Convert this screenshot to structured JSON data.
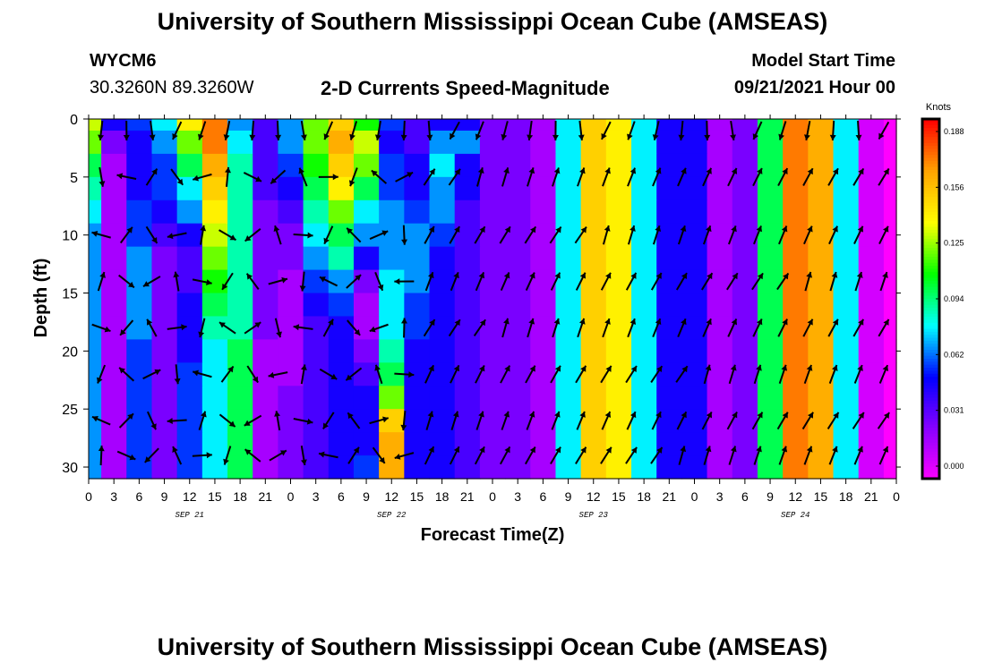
{
  "header": {
    "title": "University of Southern Mississippi Ocean Cube (AMSEAS)",
    "station": "WYCM6",
    "coords": "30.3260N  89.3260W",
    "product": "2-D Currents Speed-Magnitude",
    "model_label": "Model Start Time",
    "model_time": "09/21/2021 Hour 00"
  },
  "footer": {
    "title": "University of Southern Mississippi Ocean Cube (AMSEAS)"
  },
  "chart_data": {
    "type": "heatmap",
    "xlabel": "Forecast Time(Z)",
    "ylabel": "Depth (ft)",
    "x_tick_labels": [
      "0",
      "3",
      "6",
      "9",
      "12",
      "15",
      "18",
      "21",
      "0",
      "3",
      "6",
      "9",
      "12",
      "15",
      "18",
      "21",
      "0",
      "3",
      "6",
      "9",
      "12",
      "15",
      "18",
      "21",
      "0",
      "3",
      "6",
      "9",
      "12",
      "15",
      "18",
      "21",
      "0"
    ],
    "date_labels": [
      "SEP 21",
      "SEP 22",
      "SEP 23",
      "SEP 24"
    ],
    "xlim_hours": [
      0,
      96
    ],
    "ylim_ft": [
      0,
      31
    ],
    "y_ticks": [
      0,
      5,
      10,
      15,
      20,
      25,
      30
    ],
    "y_inverted": true,
    "colorbar": {
      "title": "Knots",
      "ticks": [
        "0.188",
        "0.156",
        "0.125",
        "0.094",
        "0.062",
        "0.031",
        "0.000"
      ],
      "range": [
        0.0,
        0.19
      ],
      "colors": [
        "#ff00ff",
        "#8800ff",
        "#0000ff",
        "#00ffff",
        "#00ff00",
        "#ffff00",
        "#ffa500",
        "#ff0000"
      ]
    },
    "depth_rows_ft": [
      0,
      2,
      4,
      6,
      8,
      10,
      12,
      14,
      16,
      18,
      20,
      22,
      24,
      26,
      28,
      30
    ],
    "time_cols_h": [
      0,
      3,
      6,
      9,
      12,
      15,
      18,
      21,
      24,
      27,
      30,
      33,
      36,
      39,
      42,
      45,
      48,
      51,
      54,
      57,
      60,
      63,
      66,
      69,
      72,
      75,
      78,
      81,
      84,
      87,
      90,
      93,
      96
    ],
    "speed_knots": [
      [
        0.13,
        0.05,
        0.06,
        0.08,
        0.14,
        0.17,
        0.07,
        0.04,
        0.07,
        0.12,
        0.15,
        0.11,
        0.06,
        0.04,
        0.05,
        0.05,
        0.03,
        0.03,
        0.02,
        0.08,
        0.15,
        0.14,
        0.08,
        0.05,
        0.05,
        0.02,
        0.03,
        0.1,
        0.17,
        0.16,
        0.08,
        0.01,
        0.0
      ],
      [
        0.12,
        0.03,
        0.05,
        0.07,
        0.12,
        0.17,
        0.08,
        0.04,
        0.07,
        0.12,
        0.16,
        0.13,
        0.05,
        0.04,
        0.07,
        0.07,
        0.03,
        0.03,
        0.02,
        0.08,
        0.15,
        0.14,
        0.08,
        0.05,
        0.05,
        0.02,
        0.03,
        0.1,
        0.17,
        0.16,
        0.08,
        0.01,
        0.0
      ],
      [
        0.1,
        0.02,
        0.05,
        0.06,
        0.1,
        0.16,
        0.09,
        0.04,
        0.06,
        0.11,
        0.15,
        0.12,
        0.06,
        0.05,
        0.08,
        0.05,
        0.03,
        0.03,
        0.02,
        0.08,
        0.15,
        0.14,
        0.08,
        0.05,
        0.05,
        0.02,
        0.03,
        0.1,
        0.17,
        0.16,
        0.08,
        0.01,
        0.0
      ],
      [
        0.09,
        0.02,
        0.05,
        0.06,
        0.08,
        0.15,
        0.09,
        0.04,
        0.05,
        0.1,
        0.14,
        0.1,
        0.06,
        0.05,
        0.07,
        0.05,
        0.03,
        0.03,
        0.02,
        0.08,
        0.15,
        0.14,
        0.08,
        0.05,
        0.05,
        0.02,
        0.03,
        0.1,
        0.17,
        0.16,
        0.08,
        0.01,
        0.0
      ],
      [
        0.08,
        0.02,
        0.06,
        0.05,
        0.07,
        0.14,
        0.09,
        0.03,
        0.04,
        0.09,
        0.12,
        0.08,
        0.07,
        0.06,
        0.07,
        0.04,
        0.03,
        0.03,
        0.02,
        0.08,
        0.15,
        0.14,
        0.08,
        0.05,
        0.05,
        0.02,
        0.03,
        0.1,
        0.17,
        0.16,
        0.08,
        0.01,
        0.0
      ],
      [
        0.07,
        0.02,
        0.06,
        0.04,
        0.05,
        0.13,
        0.09,
        0.03,
        0.03,
        0.08,
        0.1,
        0.07,
        0.07,
        0.07,
        0.06,
        0.04,
        0.03,
        0.03,
        0.02,
        0.08,
        0.15,
        0.14,
        0.08,
        0.05,
        0.05,
        0.02,
        0.03,
        0.1,
        0.17,
        0.16,
        0.08,
        0.01,
        0.0
      ],
      [
        0.07,
        0.02,
        0.07,
        0.03,
        0.04,
        0.12,
        0.09,
        0.03,
        0.03,
        0.07,
        0.09,
        0.05,
        0.07,
        0.07,
        0.05,
        0.04,
        0.03,
        0.03,
        0.02,
        0.08,
        0.15,
        0.14,
        0.08,
        0.05,
        0.05,
        0.02,
        0.03,
        0.1,
        0.17,
        0.16,
        0.08,
        0.01,
        0.0
      ],
      [
        0.07,
        0.02,
        0.07,
        0.03,
        0.04,
        0.11,
        0.09,
        0.03,
        0.02,
        0.06,
        0.07,
        0.03,
        0.08,
        0.07,
        0.05,
        0.04,
        0.03,
        0.03,
        0.02,
        0.08,
        0.15,
        0.14,
        0.08,
        0.05,
        0.05,
        0.02,
        0.03,
        0.1,
        0.17,
        0.16,
        0.08,
        0.01,
        0.0
      ],
      [
        0.07,
        0.02,
        0.07,
        0.03,
        0.05,
        0.1,
        0.09,
        0.03,
        0.02,
        0.05,
        0.06,
        0.02,
        0.08,
        0.06,
        0.05,
        0.04,
        0.03,
        0.03,
        0.02,
        0.08,
        0.15,
        0.14,
        0.08,
        0.05,
        0.05,
        0.02,
        0.03,
        0.1,
        0.17,
        0.16,
        0.08,
        0.01,
        0.0
      ],
      [
        0.07,
        0.02,
        0.07,
        0.03,
        0.05,
        0.09,
        0.09,
        0.03,
        0.02,
        0.04,
        0.05,
        0.02,
        0.08,
        0.06,
        0.05,
        0.04,
        0.03,
        0.03,
        0.02,
        0.08,
        0.15,
        0.14,
        0.08,
        0.05,
        0.05,
        0.02,
        0.03,
        0.1,
        0.17,
        0.16,
        0.08,
        0.01,
        0.0
      ],
      [
        0.07,
        0.02,
        0.06,
        0.03,
        0.05,
        0.08,
        0.1,
        0.02,
        0.02,
        0.04,
        0.05,
        0.03,
        0.09,
        0.05,
        0.05,
        0.04,
        0.03,
        0.03,
        0.02,
        0.08,
        0.15,
        0.14,
        0.08,
        0.05,
        0.05,
        0.02,
        0.03,
        0.1,
        0.17,
        0.16,
        0.08,
        0.01,
        0.0
      ],
      [
        0.07,
        0.02,
        0.06,
        0.03,
        0.06,
        0.08,
        0.1,
        0.02,
        0.02,
        0.04,
        0.05,
        0.04,
        0.1,
        0.05,
        0.05,
        0.04,
        0.03,
        0.03,
        0.02,
        0.08,
        0.15,
        0.14,
        0.08,
        0.05,
        0.05,
        0.02,
        0.03,
        0.1,
        0.17,
        0.16,
        0.08,
        0.01,
        0.0
      ],
      [
        0.07,
        0.02,
        0.06,
        0.03,
        0.06,
        0.08,
        0.1,
        0.02,
        0.03,
        0.04,
        0.05,
        0.05,
        0.12,
        0.05,
        0.05,
        0.04,
        0.03,
        0.03,
        0.02,
        0.08,
        0.15,
        0.14,
        0.08,
        0.05,
        0.05,
        0.02,
        0.03,
        0.1,
        0.17,
        0.16,
        0.08,
        0.01,
        0.0
      ],
      [
        0.07,
        0.02,
        0.06,
        0.03,
        0.06,
        0.08,
        0.1,
        0.02,
        0.03,
        0.04,
        0.05,
        0.05,
        0.15,
        0.05,
        0.05,
        0.04,
        0.03,
        0.03,
        0.02,
        0.08,
        0.15,
        0.14,
        0.08,
        0.05,
        0.05,
        0.02,
        0.03,
        0.1,
        0.17,
        0.16,
        0.08,
        0.01,
        0.0
      ],
      [
        0.07,
        0.02,
        0.06,
        0.03,
        0.06,
        0.08,
        0.1,
        0.02,
        0.03,
        0.04,
        0.05,
        0.05,
        0.16,
        0.05,
        0.05,
        0.04,
        0.03,
        0.03,
        0.02,
        0.08,
        0.15,
        0.14,
        0.08,
        0.05,
        0.05,
        0.02,
        0.03,
        0.1,
        0.17,
        0.16,
        0.08,
        0.01,
        0.0
      ],
      [
        0.07,
        0.02,
        0.06,
        0.03,
        0.06,
        0.08,
        0.1,
        0.02,
        0.03,
        0.04,
        0.05,
        0.06,
        0.16,
        0.05,
        0.05,
        0.04,
        0.03,
        0.03,
        0.02,
        0.08,
        0.15,
        0.14,
        0.08,
        0.05,
        0.05,
        0.02,
        0.03,
        0.1,
        0.17,
        0.16,
        0.08,
        0.01,
        0.0
      ]
    ],
    "arrow_direction_deg": {
      "near_surface": 190,
      "upper_layer_varied": true,
      "deep_layer": 25
    }
  }
}
